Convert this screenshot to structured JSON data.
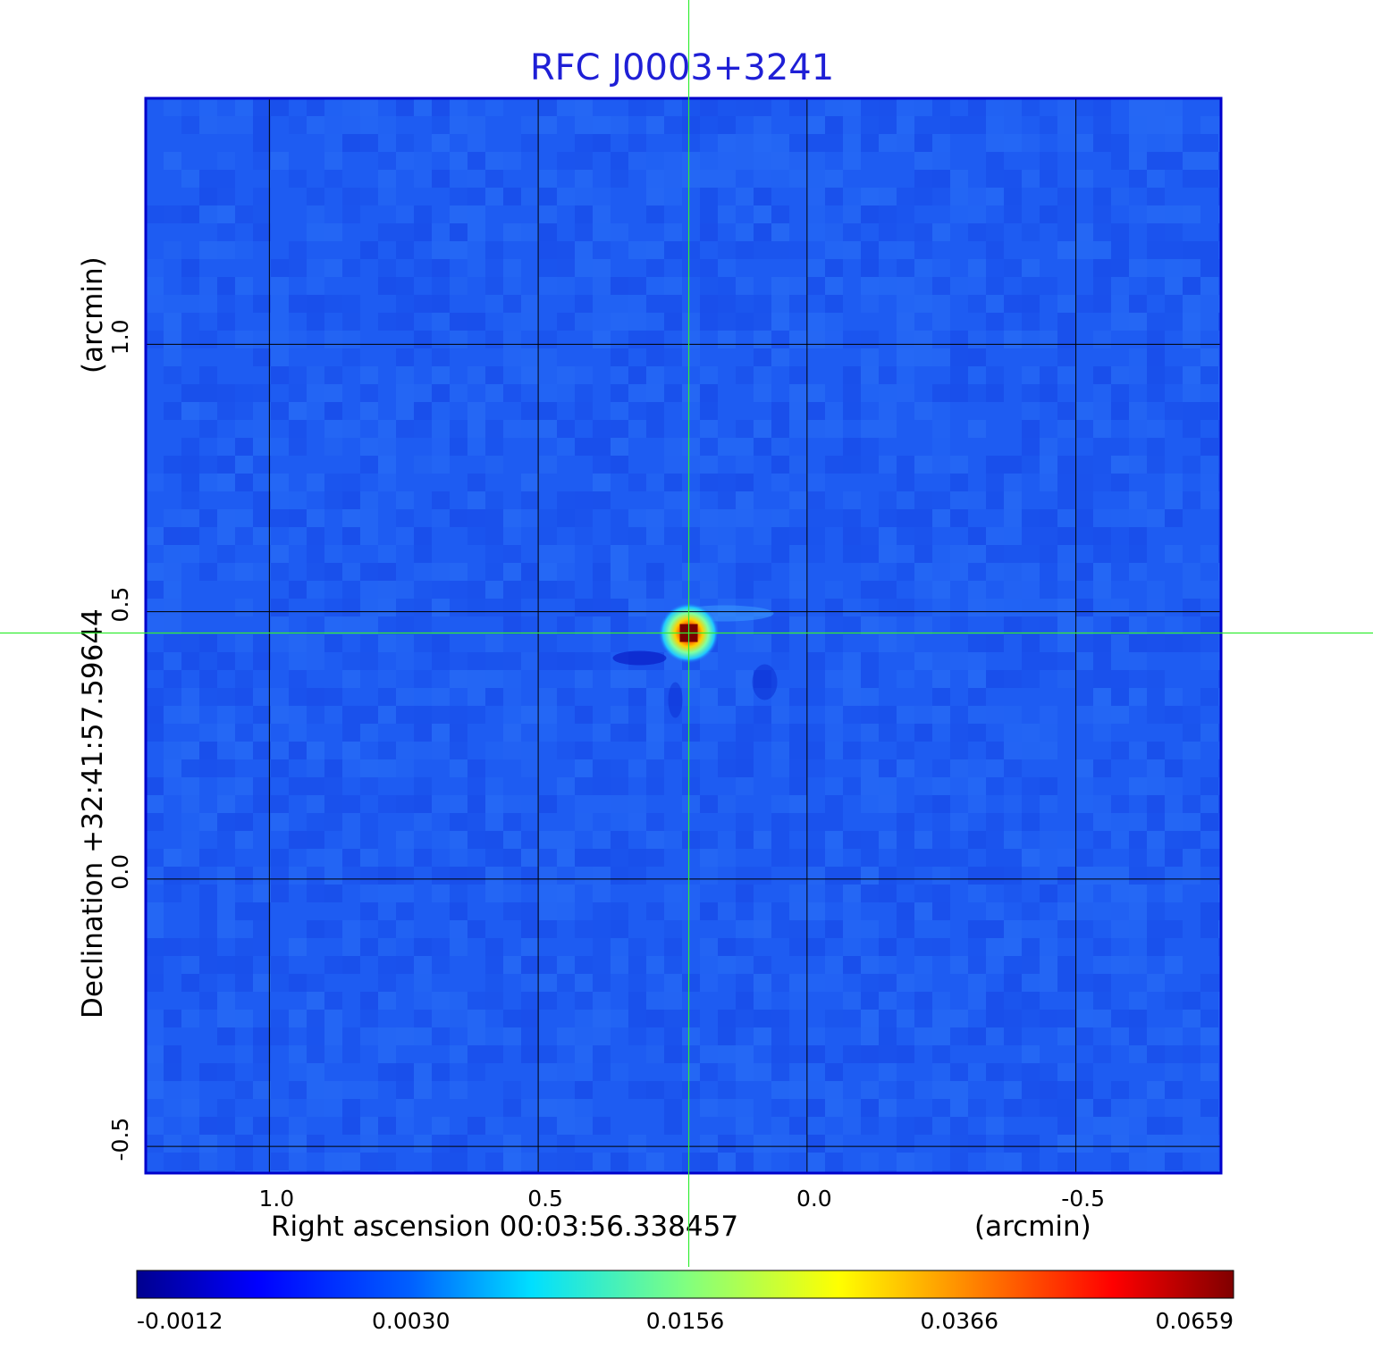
{
  "chart_data": {
    "type": "heatmap",
    "title": "RFC J0003+3241",
    "xlabel": "Right ascension  00:03:56.338457",
    "xunit": "(arcmin)",
    "ylabel": "Declination  +32:41:57.59644",
    "yunit": "(arcmin)",
    "xlim": [
      1.23,
      -0.77
    ],
    "ylim": [
      -0.55,
      1.46
    ],
    "x_ticks": [
      {
        "value": 1.0,
        "label": "1.0"
      },
      {
        "value": 0.5,
        "label": "0.5"
      },
      {
        "value": 0.0,
        "label": "0.0"
      },
      {
        "value": -0.5,
        "label": "-0.5"
      }
    ],
    "y_ticks": [
      {
        "value": -0.5,
        "label": "-0.5"
      },
      {
        "value": 0.0,
        "label": "0.0"
      },
      {
        "value": 0.5,
        "label": "0.5"
      },
      {
        "value": 1.0,
        "label": "1.0"
      }
    ],
    "grid": true,
    "crosshair": {
      "x": 0.22,
      "y": 0.46
    },
    "peak": {
      "x": 0.22,
      "y": 0.46,
      "value": 0.0659
    },
    "background_level": 0.0005,
    "colorbar": {
      "colormap": "jet",
      "min": -0.0012,
      "max": 0.0659,
      "ticks": [
        {
          "value": -0.0012,
          "label": "-0.0012"
        },
        {
          "value": 0.003,
          "label": "0.0030"
        },
        {
          "value": 0.0156,
          "label": "0.0156"
        },
        {
          "value": 0.0366,
          "label": "0.0366"
        },
        {
          "value": 0.0659,
          "label": "0.0659"
        }
      ]
    },
    "colors": {
      "title": "#1f1fd6",
      "frame": "#0000cc",
      "grid": "#000000",
      "crosshair": "#33ee33"
    }
  }
}
